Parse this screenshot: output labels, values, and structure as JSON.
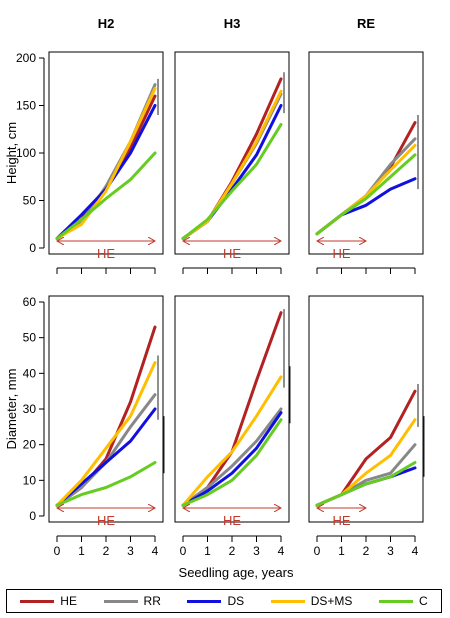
{
  "chart_data": {
    "type": "line",
    "x": [
      0,
      1,
      2,
      3,
      4
    ],
    "xlabel": "Seedling age, years",
    "x_ticks": [
      "0",
      "1",
      "2",
      "3",
      "4"
    ],
    "columns": [
      "H2",
      "H3",
      "RE"
    ],
    "colors": {
      "HE": "#b22222",
      "RR": "#888888",
      "DS": "#1010e0",
      "DS+MS": "#ffbf00",
      "C": "#66cc22",
      "arrow": "#c0392b",
      "axis": "#000000",
      "bar": "#222222"
    },
    "legend": [
      "HE",
      "RR",
      "DS",
      "DS+MS",
      "C"
    ],
    "rows": [
      {
        "ylabel": "Height, cm",
        "ylim": [
          0,
          200
        ],
        "y_ticks": [
          "0",
          "50",
          "100",
          "150",
          "200"
        ],
        "panels": [
          {
            "column": "H2",
            "arrow_label": "HE",
            "arrow_range": [
              0,
              4
            ],
            "error_bar": [
              140,
              178
            ],
            "series": [
              {
                "name": "HE",
                "values": [
                  10,
                  30,
                  62,
                  105,
                  160
                ]
              },
              {
                "name": "RR",
                "values": [
                  10,
                  28,
                  65,
                  112,
                  172
                ]
              },
              {
                "name": "DS",
                "values": [
                  10,
                  35,
                  62,
                  100,
                  150
                ]
              },
              {
                "name": "DS+MS",
                "values": [
                  10,
                  25,
                  60,
                  112,
                  168
                ]
              },
              {
                "name": "C",
                "values": [
                  10,
                  30,
                  52,
                  72,
                  100
                ]
              }
            ]
          },
          {
            "column": "H3",
            "arrow_label": "HE",
            "arrow_range": [
              0,
              4
            ],
            "error_bar": [
              142,
              185
            ],
            "series": [
              {
                "name": "HE",
                "values": [
                  10,
                  28,
                  70,
                  120,
                  178
                ]
              },
              {
                "name": "RR",
                "values": [
                  10,
                  28,
                  68,
                  110,
                  162
                ]
              },
              {
                "name": "DS",
                "values": [
                  10,
                  28,
                  62,
                  98,
                  150
                ]
              },
              {
                "name": "DS+MS",
                "values": [
                  10,
                  28,
                  68,
                  112,
                  165
                ]
              },
              {
                "name": "C",
                "values": [
                  10,
                  30,
                  60,
                  88,
                  130
                ]
              }
            ]
          },
          {
            "column": "RE",
            "arrow_label": "HE",
            "arrow_range": [
              0,
              2
            ],
            "error_bar": [
              62,
              140
            ],
            "series": [
              {
                "name": "HE",
                "values": [
                  15,
                  35,
                  55,
                  85,
                  132
                ]
              },
              {
                "name": "RR",
                "values": [
                  15,
                  35,
                  55,
                  88,
                  115
                ]
              },
              {
                "name": "DS",
                "values": [
                  15,
                  35,
                  45,
                  62,
                  73
                ]
              },
              {
                "name": "DS+MS",
                "values": [
                  15,
                  35,
                  55,
                  82,
                  108
                ]
              },
              {
                "name": "C",
                "values": [
                  15,
                  35,
                  52,
                  75,
                  98
                ]
              }
            ]
          }
        ]
      },
      {
        "ylabel": "Diameter, mm",
        "ylim": [
          0,
          60
        ],
        "y_ticks": [
          "0",
          "10",
          "20",
          "30",
          "40",
          "50",
          "60"
        ],
        "panels": [
          {
            "column": "H2",
            "arrow_label": "HE",
            "arrow_range": [
              0,
              4
            ],
            "error_bar": [
              27,
              45
            ],
            "error_bar2": [
              12,
              28
            ],
            "series": [
              {
                "name": "HE",
                "values": [
                  3,
                  8,
                  16,
                  32,
                  53
                ]
              },
              {
                "name": "RR",
                "values": [
                  3,
                  8,
                  15,
                  25,
                  34
                ]
              },
              {
                "name": "DS",
                "values": [
                  3,
                  9,
                  15,
                  21,
                  30
                ]
              },
              {
                "name": "DS+MS",
                "values": [
                  3,
                  10,
                  19,
                  28,
                  43
                ]
              },
              {
                "name": "C",
                "values": [
                  3,
                  6,
                  8,
                  11,
                  15
                ]
              }
            ]
          },
          {
            "column": "H3",
            "arrow_label": "HE",
            "arrow_range": [
              0,
              4
            ],
            "error_bar": [
              36,
              58
            ],
            "error_bar2": [
              26,
              42
            ],
            "series": [
              {
                "name": "HE",
                "values": [
                  3,
                  8,
                  18,
                  38,
                  57
                ]
              },
              {
                "name": "RR",
                "values": [
                  3,
                  8,
                  14,
                  21,
                  30
                ]
              },
              {
                "name": "DS",
                "values": [
                  3,
                  7,
                  12,
                  19,
                  29
                ]
              },
              {
                "name": "DS+MS",
                "values": [
                  3,
                  11,
                  18,
                  28,
                  39
                ]
              },
              {
                "name": "C",
                "values": [
                  3,
                  6,
                  10,
                  17,
                  27
                ]
              }
            ]
          },
          {
            "column": "RE",
            "arrow_label": "HE",
            "arrow_range": [
              0,
              2
            ],
            "error_bar": [
              25,
              37
            ],
            "error_bar2": [
              11,
              28
            ],
            "series": [
              {
                "name": "HE",
                "values": [
                  3,
                  6,
                  16,
                  22,
                  35
                ]
              },
              {
                "name": "RR",
                "values": [
                  3,
                  6,
                  10,
                  12,
                  20
                ]
              },
              {
                "name": "DS",
                "values": [
                  3,
                  6,
                  9,
                  11,
                  13.5
                ]
              },
              {
                "name": "DS+MS",
                "values": [
                  3,
                  6,
                  12,
                  17,
                  27
                ]
              },
              {
                "name": "C",
                "values": [
                  3,
                  6,
                  9,
                  11,
                  15
                ]
              }
            ]
          }
        ]
      }
    ]
  }
}
